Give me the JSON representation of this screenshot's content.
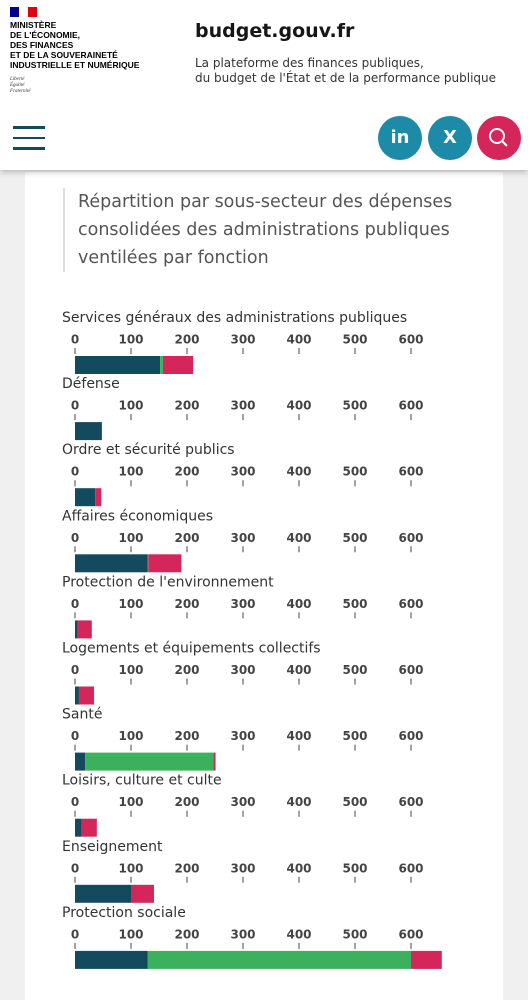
{
  "header": {
    "ministry": [
      "MINISTÈRE",
      "DE L'ÉCONOMIE,",
      "DES FINANCES",
      "ET DE LA SOUVERAINETÉ",
      "INDUSTRIELLE ET NUMÉRIQUE"
    ],
    "motto": [
      "Liberté",
      "Égalité",
      "Fraternité"
    ],
    "site_name": "budget.gouv.fr",
    "tagline": [
      "La plateforme des finances publiques,",
      "du budget de l'État et de la performance publique"
    ],
    "linkedin": "in",
    "x": "X"
  },
  "section_title": [
    "Répartition par sous-secteur des dépenses",
    "consolidées des administrations publiques",
    "ventilées par fonction"
  ],
  "chart_data": [
    {
      "type": "stacked-bar",
      "title": "Services généraux des administrations publiques",
      "xlim": [
        0,
        600
      ],
      "xticks": [
        0,
        100,
        200,
        300,
        400,
        500,
        600
      ],
      "series": [
        {
          "color": "#134a5e",
          "values": [
            152
          ]
        },
        {
          "color": "#3bb15e",
          "values": [
            5
          ]
        },
        {
          "color": "#d4265a",
          "values": [
            54
          ]
        }
      ]
    },
    {
      "type": "stacked-bar",
      "title": "Défense",
      "xlim": [
        0,
        600
      ],
      "xticks": [
        0,
        100,
        200,
        300,
        400,
        500,
        600
      ],
      "series": [
        {
          "color": "#134a5e",
          "values": [
            48
          ]
        },
        {
          "color": "#3bb15e",
          "values": [
            0
          ]
        },
        {
          "color": "#d4265a",
          "values": [
            0
          ]
        }
      ]
    },
    {
      "type": "stacked-bar",
      "title": "Ordre et sécurité publics",
      "xlim": [
        0,
        600
      ],
      "xticks": [
        0,
        100,
        200,
        300,
        400,
        500,
        600
      ],
      "series": [
        {
          "color": "#134a5e",
          "values": [
            36
          ]
        },
        {
          "color": "#3bb15e",
          "values": [
            0
          ]
        },
        {
          "color": "#d4265a",
          "values": [
            11
          ]
        }
      ]
    },
    {
      "type": "stacked-bar",
      "title": "Affaires économiques",
      "xlim": [
        0,
        600
      ],
      "xticks": [
        0,
        100,
        200,
        300,
        400,
        500,
        600
      ],
      "series": [
        {
          "color": "#134a5e",
          "values": [
            130
          ]
        },
        {
          "color": "#3bb15e",
          "values": [
            1
          ]
        },
        {
          "color": "#d4265a",
          "values": [
            59
          ]
        }
      ]
    },
    {
      "type": "stacked-bar",
      "title": "Protection de l'environnement",
      "xlim": [
        0,
        600
      ],
      "xticks": [
        0,
        100,
        200,
        300,
        400,
        500,
        600
      ],
      "series": [
        {
          "color": "#134a5e",
          "values": [
            5
          ]
        },
        {
          "color": "#3bb15e",
          "values": [
            0
          ]
        },
        {
          "color": "#d4265a",
          "values": [
            25
          ]
        }
      ]
    },
    {
      "type": "stacked-bar",
      "title": "Logements et équipements collectifs",
      "xlim": [
        0,
        600
      ],
      "xticks": [
        0,
        100,
        200,
        300,
        400,
        500,
        600
      ],
      "series": [
        {
          "color": "#134a5e",
          "values": [
            7
          ]
        },
        {
          "color": "#3bb15e",
          "values": [
            0
          ]
        },
        {
          "color": "#d4265a",
          "values": [
            27
          ]
        }
      ]
    },
    {
      "type": "stacked-bar",
      "title": "Santé",
      "xlim": [
        0,
        600
      ],
      "xticks": [
        0,
        100,
        200,
        300,
        400,
        500,
        600
      ],
      "series": [
        {
          "color": "#134a5e",
          "values": [
            18
          ]
        },
        {
          "color": "#3bb15e",
          "values": [
            229
          ]
        },
        {
          "color": "#d4265a",
          "values": [
            4
          ]
        }
      ]
    },
    {
      "type": "stacked-bar",
      "title": "Loisirs, culture et culte",
      "xlim": [
        0,
        600
      ],
      "xticks": [
        0,
        100,
        200,
        300,
        400,
        500,
        600
      ],
      "series": [
        {
          "color": "#134a5e",
          "values": [
            12
          ]
        },
        {
          "color": "#3bb15e",
          "values": [
            0
          ]
        },
        {
          "color": "#d4265a",
          "values": [
            27
          ]
        }
      ]
    },
    {
      "type": "stacked-bar",
      "title": "Enseignement",
      "xlim": [
        0,
        600
      ],
      "xticks": [
        0,
        100,
        200,
        300,
        400,
        500,
        600
      ],
      "series": [
        {
          "color": "#134a5e",
          "values": [
            100
          ]
        },
        {
          "color": "#3bb15e",
          "values": [
            0
          ]
        },
        {
          "color": "#d4265a",
          "values": [
            41
          ]
        }
      ]
    },
    {
      "type": "stacked-bar",
      "title": "Protection sociale",
      "xlim": [
        0,
        600
      ],
      "xticks": [
        0,
        100,
        200,
        300,
        400,
        500,
        600
      ],
      "series": [
        {
          "color": "#134a5e",
          "values": [
            130
          ]
        },
        {
          "color": "#3bb15e",
          "values": [
            470
          ]
        },
        {
          "color": "#d4265a",
          "values": [
            55
          ]
        }
      ]
    }
  ]
}
